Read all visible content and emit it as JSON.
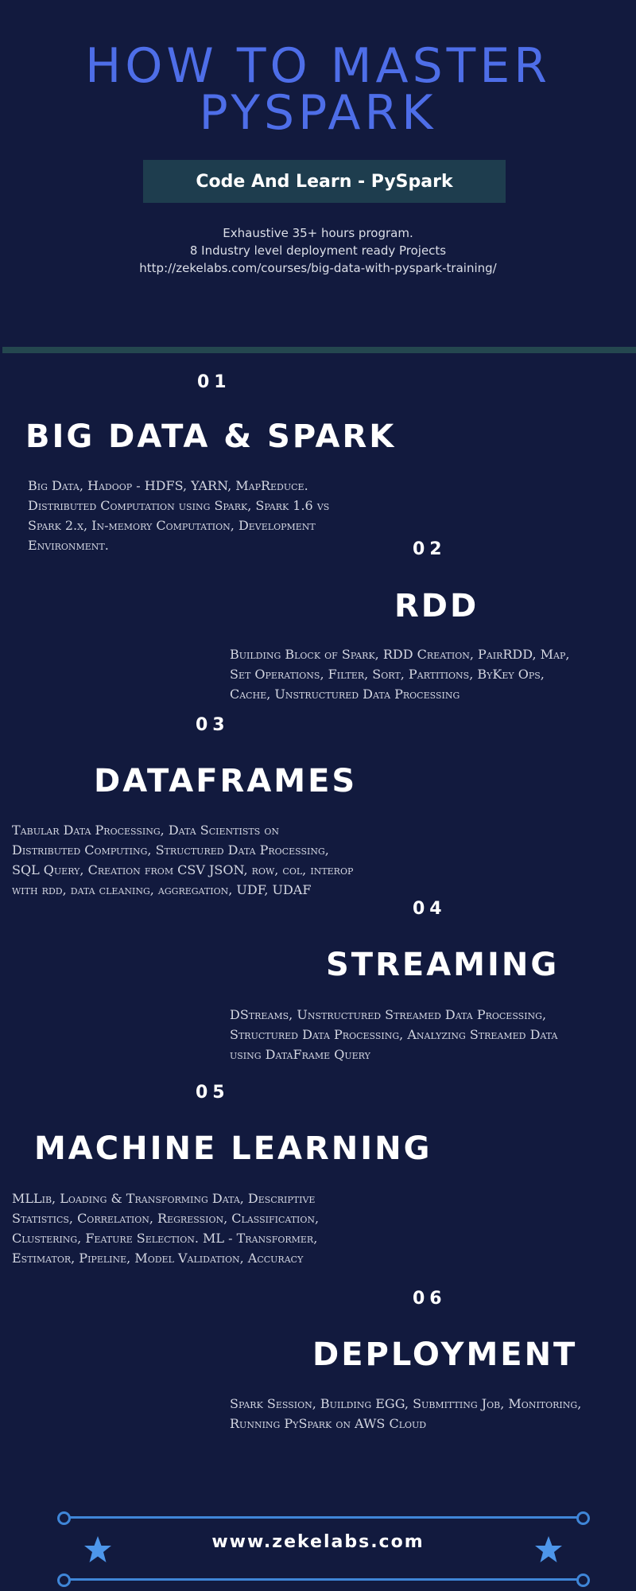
{
  "header": {
    "title_line1": "HOW TO MASTER",
    "title_line2": "PYSPARK",
    "subtitle": "Code And Learn - PySpark",
    "intro_lines": [
      "Exhaustive 35+ hours program.",
      "8 Industry level deployment ready Projects",
      "http://zekelabs.com/courses/big-data-with-pyspark-training/"
    ]
  },
  "sections": [
    {
      "number": "01",
      "title": "BIG DATA & SPARK",
      "description_lines": [
        "Big Data, Hadoop - HDFS, YARN, MapReduce.",
        "Distributed Computation using Spark, Spark 1.6 vs",
        "Spark 2.x, In-memory Computation, Development",
        "Environment."
      ]
    },
    {
      "number": "02",
      "title": "RDD",
      "description_lines": [
        "Building Block of Spark,  RDD Creation,  PairRDD, Map,",
        "Set Operations, Filter, Sort, Partitions, ByKey Ops,",
        "Cache, Unstructured Data Processing"
      ]
    },
    {
      "number": "03",
      "title": "DATAFRAMES",
      "description_lines": [
        "Tabular Data Processing, Data Scientists on",
        "Distributed Computing, Structured Data Processing,",
        "SQL Query, Creation from CSV JSON,  row, col,  interop",
        "with rdd, data cleaning, aggregation, UDF, UDAF"
      ]
    },
    {
      "number": "04",
      "title": "STREAMING",
      "description_lines": [
        "DStreams, Unstructured Streamed Data Processing,",
        "Structured Data Processing, Analyzing Streamed Data",
        "using DataFrame Query"
      ]
    },
    {
      "number": "05",
      "title": "MACHINE LEARNING",
      "description_lines": [
        "MLLib, Loading & Transforming Data, Descriptive",
        "Statistics, Correlation, Regression, Classification,",
        "Clustering, Feature Selection. ML - Transformer,",
        "Estimator, Pipeline, Model Validation, Accuracy"
      ]
    },
    {
      "number": "06",
      "title": "DEPLOYMENT",
      "description_lines": [
        "Spark Session, Building EGG, Submitting Job, Monitoring,",
        "Running PySpark on  AWS Cloud"
      ]
    }
  ],
  "footer": {
    "url": "www.zekelabs.com",
    "icons": [
      "star-icon",
      "star-icon"
    ]
  },
  "colors": {
    "background": "#121a3e",
    "title_accent": "#4e6ee8",
    "subtitle_box": "#1e3d4e",
    "divider": "#24474f",
    "footer_lines": "#3f86d8",
    "star": "#4d96ea"
  }
}
